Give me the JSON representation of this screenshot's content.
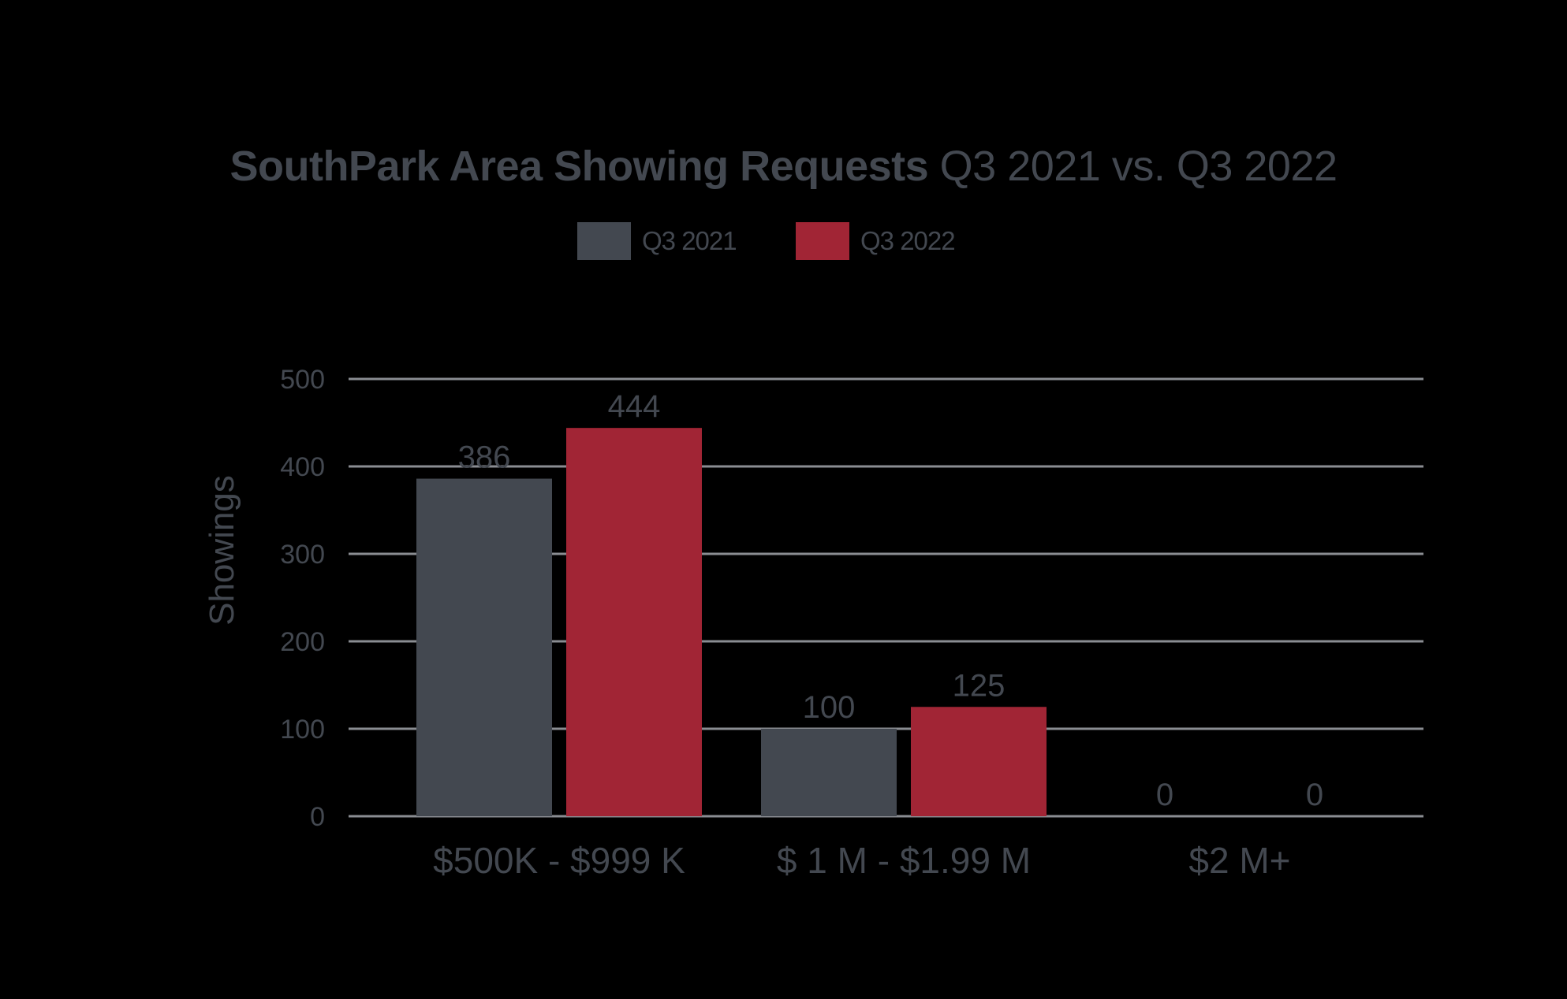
{
  "chart_data": {
    "type": "bar",
    "title": "SouthPark Area Showing Requests Q3 2021 vs. Q3 2022",
    "title_bold_part": "SouthPark Area Showing Requests",
    "title_light_part": "Q3 2021 vs. Q3 2022",
    "xlabel": "",
    "ylabel": "Showings",
    "ylim": [
      0,
      500
    ],
    "yticks": [
      "0",
      "100",
      "200",
      "300",
      "400",
      "500"
    ],
    "categories": [
      "$500K - $999 K",
      "$ 1 M - $1.99 M",
      "$2 M+"
    ],
    "series": [
      {
        "name": "Q3 2021",
        "color": "#434850",
        "values": [
          386,
          100,
          0
        ],
        "labels": [
          "386",
          "100",
          "0"
        ]
      },
      {
        "name": "Q3 2022",
        "color": "#A12535",
        "values": [
          444,
          125,
          0
        ],
        "labels": [
          "444",
          "125",
          "0"
        ]
      }
    ],
    "legend_position": "top-center",
    "grid": true
  }
}
